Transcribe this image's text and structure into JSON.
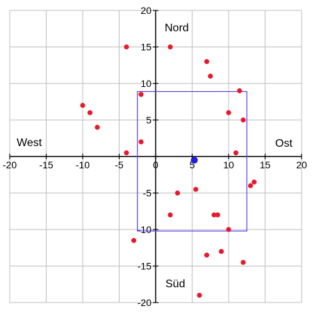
{
  "chart_data": {
    "type": "scatter",
    "xlim": [
      -20,
      20
    ],
    "ylim": [
      -20,
      20
    ],
    "grid": true,
    "x_ticks": [
      -20,
      -15,
      -10,
      -5,
      0,
      5,
      10,
      15,
      20
    ],
    "y_ticks": [
      -20,
      -15,
      -10,
      -5,
      5,
      10,
      15,
      20
    ],
    "tick_labels_x": [
      "-20",
      "-15",
      "-10",
      "-5",
      "0",
      "5",
      "10",
      "15",
      "20"
    ],
    "tick_labels_y": [
      "-20",
      "-15",
      "-10",
      "-5",
      "5",
      "10",
      "15",
      "20"
    ],
    "directions": {
      "north": "Nord",
      "south": "Süd",
      "west": "West",
      "east": "Ost"
    },
    "colors": {
      "points": "#e8192c",
      "highlight": "#1f1fe0",
      "rectangle": "#5b3df0",
      "grid": "#bdbdbd",
      "axes": "#000000"
    },
    "series": [
      {
        "points": [
          {
            "x": -4,
            "y": 15
          },
          {
            "x": 2,
            "y": 15
          },
          {
            "x": 7,
            "y": 13
          },
          {
            "x": 7.5,
            "y": 11
          },
          {
            "x": -10,
            "y": 7
          },
          {
            "x": -9,
            "y": 6
          },
          {
            "x": -8,
            "y": 4
          },
          {
            "x": -2,
            "y": 8.5
          },
          {
            "x": 11.5,
            "y": 9
          },
          {
            "x": 10,
            "y": 6
          },
          {
            "x": 12,
            "y": 5
          },
          {
            "x": -4,
            "y": 0.5
          },
          {
            "x": -2,
            "y": 2
          },
          {
            "x": 11,
            "y": 0.5
          },
          {
            "x": 13.5,
            "y": -3.5
          },
          {
            "x": 13,
            "y": -4
          },
          {
            "x": 3,
            "y": -5
          },
          {
            "x": 5.5,
            "y": -4.5
          },
          {
            "x": 2,
            "y": -8
          },
          {
            "x": 8,
            "y": -8
          },
          {
            "x": 8.5,
            "y": -8
          },
          {
            "x": 10,
            "y": -10
          },
          {
            "x": -3,
            "y": -11.5
          },
          {
            "x": 9,
            "y": -13
          },
          {
            "x": 7,
            "y": -13.5
          },
          {
            "x": 12,
            "y": -14.5
          },
          {
            "x": 6,
            "y": -19
          }
        ]
      },
      {
        "points": [
          {
            "x": 5.3,
            "y": -0.5
          }
        ]
      }
    ],
    "rectangle": {
      "x_min": -2.5,
      "x_max": 12.5,
      "y_min": -10.2,
      "y_max": 8.9
    }
  }
}
